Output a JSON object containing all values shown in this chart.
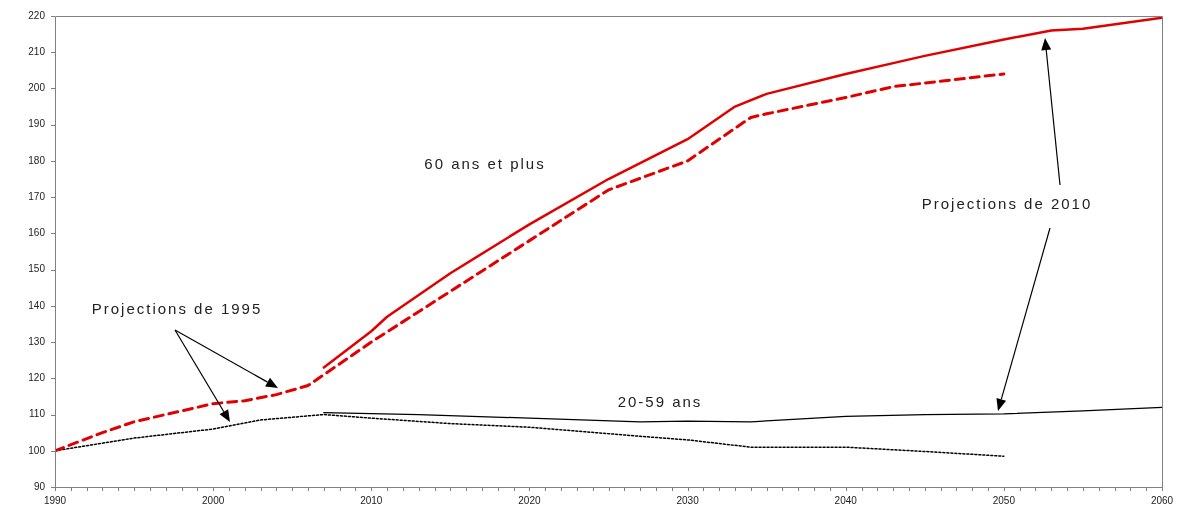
{
  "chart_data": {
    "type": "line",
    "xlim": [
      1990,
      2060
    ],
    "xticks": [
      1990,
      2000,
      2010,
      2020,
      2030,
      2040,
      2050,
      2060
    ],
    "ylim": [
      90,
      220
    ],
    "yticks": [
      90,
      100,
      110,
      120,
      130,
      140,
      150,
      160,
      170,
      180,
      190,
      200,
      210,
      220
    ],
    "grid": false,
    "legend": false,
    "marker": "none",
    "series": [
      {
        "color": "#e00000",
        "line_style": "dashed",
        "x": [
          1990,
          1993,
          1995,
          2000,
          2002,
          2004,
          2006,
          2007,
          2010,
          2015,
          2020,
          2025,
          2030,
          2034,
          2035,
          2040,
          2043,
          2045,
          2050
        ],
        "values": [
          100,
          105,
          108,
          113,
          113.8,
          115.5,
          118,
          121,
          130,
          144,
          158,
          172,
          180,
          192,
          193,
          197.5,
          200.5,
          201.5,
          204
        ]
      },
      {
        "color": "#e00000",
        "line_style": "solid",
        "x": [
          2007,
          2010,
          2011,
          2015,
          2020,
          2025,
          2030,
          2033,
          2035,
          2040,
          2043,
          2045,
          2050,
          2053,
          2055,
          2060
        ],
        "values": [
          123,
          133,
          137,
          149,
          162.5,
          175,
          186,
          195,
          198.5,
          204,
          207,
          209,
          213.5,
          216,
          216.5,
          219.5
        ]
      },
      {
        "color": "#000000",
        "line_style": "dotted",
        "x": [
          1990,
          1995,
          2000,
          2003,
          2007,
          2010,
          2015,
          2020,
          2027,
          2030,
          2034,
          2040,
          2045,
          2050
        ],
        "values": [
          100,
          103.5,
          106,
          108.5,
          110,
          109,
          107.5,
          106.5,
          104,
          103,
          101,
          101,
          99.8,
          98.5
        ]
      },
      {
        "color": "#000000",
        "line_style": "solid",
        "x": [
          2007,
          2013,
          2020,
          2027,
          2030,
          2034,
          2040,
          2045,
          2050,
          2055,
          2060
        ],
        "values": [
          110.5,
          110,
          109,
          108,
          108.2,
          108,
          109.5,
          110,
          110.2,
          111,
          112
        ]
      }
    ],
    "annotations": [
      "60 ans et plus",
      "20-59 ans",
      "Projections de 1995",
      "Projections de 2010"
    ]
  }
}
